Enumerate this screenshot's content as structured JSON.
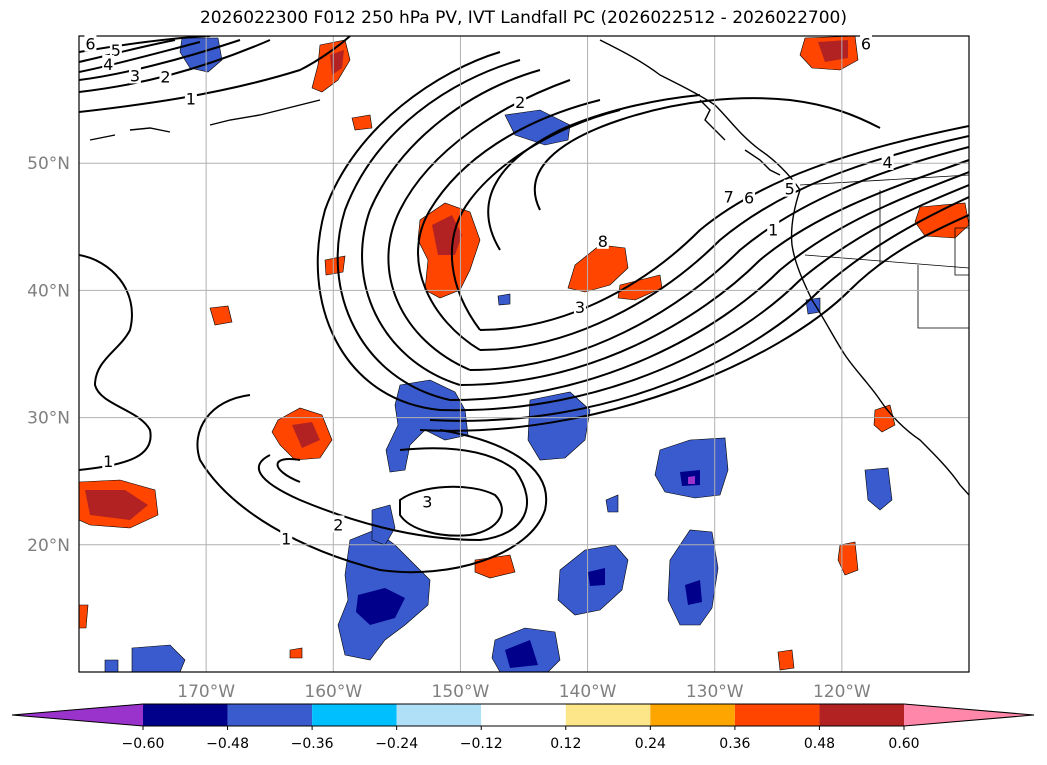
{
  "title": "2026022300 F012 250 hPa PV, IVT Landfall PC (2026022512 - 2026022700)",
  "map": {
    "projection": "PlateCarree",
    "lon_range": [
      -180,
      -110
    ],
    "lat_range": [
      10,
      60
    ],
    "lat_ticks": [
      {
        "value": 20,
        "label": "20°N"
      },
      {
        "value": 30,
        "label": "30°N"
      },
      {
        "value": 40,
        "label": "40°N"
      },
      {
        "value": 50,
        "label": "50°N"
      }
    ],
    "lon_ticks": [
      {
        "value": -170,
        "label": "170°W"
      },
      {
        "value": -160,
        "label": "160°W"
      },
      {
        "value": -150,
        "label": "150°W"
      },
      {
        "value": -140,
        "label": "140°W"
      },
      {
        "value": -130,
        "label": "130°W"
      },
      {
        "value": -120,
        "label": "120°W"
      }
    ],
    "gridlines": true,
    "coastline_color": "#000000"
  },
  "contour_labels": [
    {
      "text": "6",
      "lon": -179.1,
      "lat": 59.4
    },
    {
      "text": "5",
      "lon": -177.1,
      "lat": 58.9
    },
    {
      "text": "4",
      "lon": -177.7,
      "lat": 57.8
    },
    {
      "text": "3",
      "lon": -175.6,
      "lat": 56.9
    },
    {
      "text": "2",
      "lon": -173.2,
      "lat": 56.8
    },
    {
      "text": "1",
      "lon": -171.2,
      "lat": 55.1
    },
    {
      "text": "2",
      "lon": -145.3,
      "lat": 54.8
    },
    {
      "text": "7",
      "lon": -128.9,
      "lat": 47.4
    },
    {
      "text": "6",
      "lon": -127.3,
      "lat": 47.3
    },
    {
      "text": "5",
      "lon": -124.1,
      "lat": 48.0
    },
    {
      "text": "4",
      "lon": -116.4,
      "lat": 50.1
    },
    {
      "text": "8",
      "lon": -138.8,
      "lat": 43.9
    },
    {
      "text": "3",
      "lon": -140.6,
      "lat": 38.7
    },
    {
      "text": "1",
      "lon": -125.4,
      "lat": 44.8
    },
    {
      "text": "1",
      "lon": -177.7,
      "lat": 26.6
    },
    {
      "text": "3",
      "lon": -152.6,
      "lat": 23.4
    },
    {
      "text": "2",
      "lon": -159.6,
      "lat": 21.6
    },
    {
      "text": "1",
      "lon": -163.7,
      "lat": 20.5
    },
    {
      "text": "6",
      "lon": -118.1,
      "lat": 59.4
    }
  ],
  "colorbar": {
    "levels": [
      -0.6,
      -0.48,
      -0.36,
      -0.24,
      -0.12,
      0.12,
      0.24,
      0.36,
      0.48,
      0.6
    ],
    "labels": [
      "−0.60",
      "−0.48",
      "−0.36",
      "−0.24",
      "−0.12",
      "0.12",
      "0.24",
      "0.36",
      "0.48",
      "0.60"
    ],
    "colors": [
      "#9933cc",
      "#00008b",
      "#3a5bcd",
      "#00bfff",
      "#b0e0f8",
      "#ffffff",
      "#fde68a",
      "#ffa500",
      "#ff4500",
      "#b22222",
      "#ff88aa"
    ],
    "extend": "both"
  },
  "colors": {
    "contour": "#000000",
    "grid": "#b0b0b0"
  }
}
